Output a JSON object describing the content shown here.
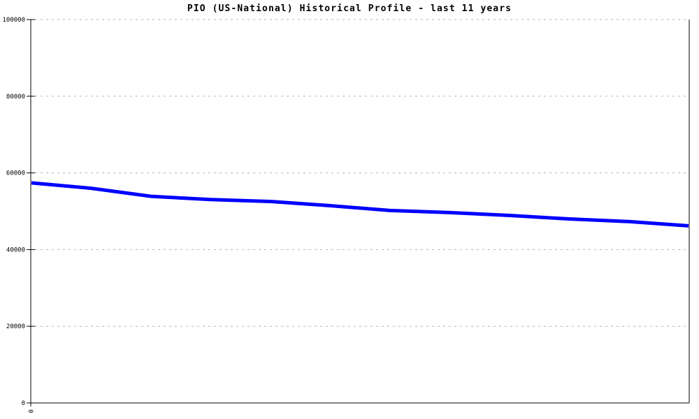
{
  "page": {
    "background": "#ffffff"
  },
  "chart_data": {
    "type": "line",
    "title": "PIO (US-National) Historical Profile - last 11 years",
    "x": [
      0,
      1,
      2,
      3,
      4,
      5,
      6,
      7,
      8,
      9,
      10,
      11
    ],
    "series": [
      {
        "name": "PIO (US-National)",
        "color": "#0000ff",
        "values": [
          57400,
          56000,
          53900,
          53050,
          52550,
          51450,
          50200,
          49650,
          48900,
          48000,
          47300,
          46200
        ]
      }
    ],
    "xlabel": "",
    "ylabel": "",
    "ylim": [
      0,
      100000
    ],
    "y_ticks": [
      100000,
      80000,
      60000,
      40000,
      20000,
      0
    ],
    "y_tick_labels": [
      "100000",
      "80000",
      "60000",
      "40000",
      "20000",
      "0"
    ],
    "x_ticks": [
      0
    ],
    "x_tick_labels": [
      "0"
    ],
    "x_tick_label_rotation_deg": 90,
    "grid": "horizontal-dashed",
    "legend": "none",
    "colors": {
      "line": "#0000ff",
      "grid": "#b3b3b3",
      "axis": "#000000",
      "text": "#000000",
      "background": "#ffffff"
    }
  }
}
